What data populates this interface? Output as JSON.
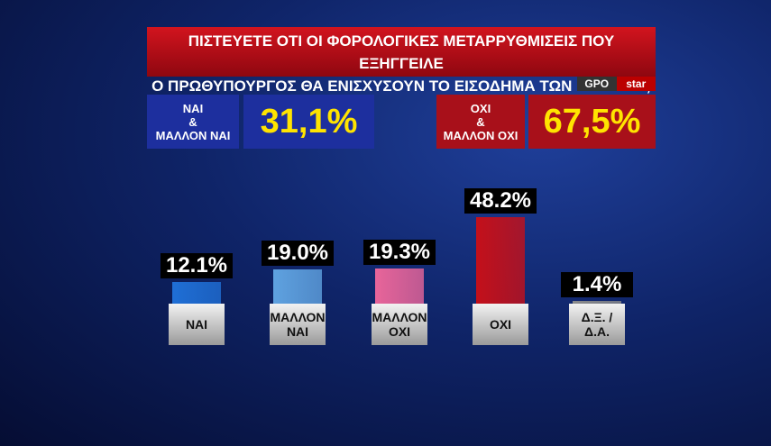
{
  "header": {
    "title": [
      "ΠΙΣΤΕΥΕΤΕ ΟΤΙ ΟΙ ΦΟΡΟΛΟΓΙΚΕΣ ΜΕΤΑΡΡΥΘΜΙΣΕΙΣ ΠΟΥ ΕΞΗΓΓΕΙΛΕ",
      "Ο ΠΡΩΘΥΠΟΥΡΓΟΣ ΘΑ ΕΝΙΣΧΥΣΟΥΝ ΤΟ ΕΙΣΟΔΗΜΑ ΤΩΝ ΠΟΛΙΤΩΝ;"
    ],
    "logo": [
      "GPO",
      "star"
    ]
  },
  "summary": [
    {
      "label": [
        "ΝΑΙ",
        "&",
        "ΜΑΛΛΟΝ ΝΑΙ"
      ],
      "value": 31.1,
      "value_label": "31,1%",
      "color": "#1d2f9e"
    },
    {
      "label": [
        "ΟΧΙ",
        "&",
        "ΜΑΛΛΟΝ ΟΧΙ"
      ],
      "value": 67.5,
      "value_label": "67,5%",
      "color": "#a8101a"
    }
  ],
  "chart_data": {
    "type": "bar",
    "categories": [
      "ΝΑΙ",
      "ΜΑΛΛΟΝ ΝΑΙ",
      "ΜΑΛΛΟΝ ΟΧΙ",
      "ΟΧΙ",
      "Δ.Ξ. / Δ.Α."
    ],
    "values": [
      12.1,
      19.0,
      19.3,
      48.2,
      1.4
    ],
    "value_labels": [
      "12.1%",
      "19.0%",
      "19.3%",
      "48.2%",
      "1.4%"
    ],
    "colors": [
      "#1f6fd6",
      "#5fa2e0",
      "#e8659a",
      "#c4101a",
      "#8a8a8a"
    ]
  }
}
